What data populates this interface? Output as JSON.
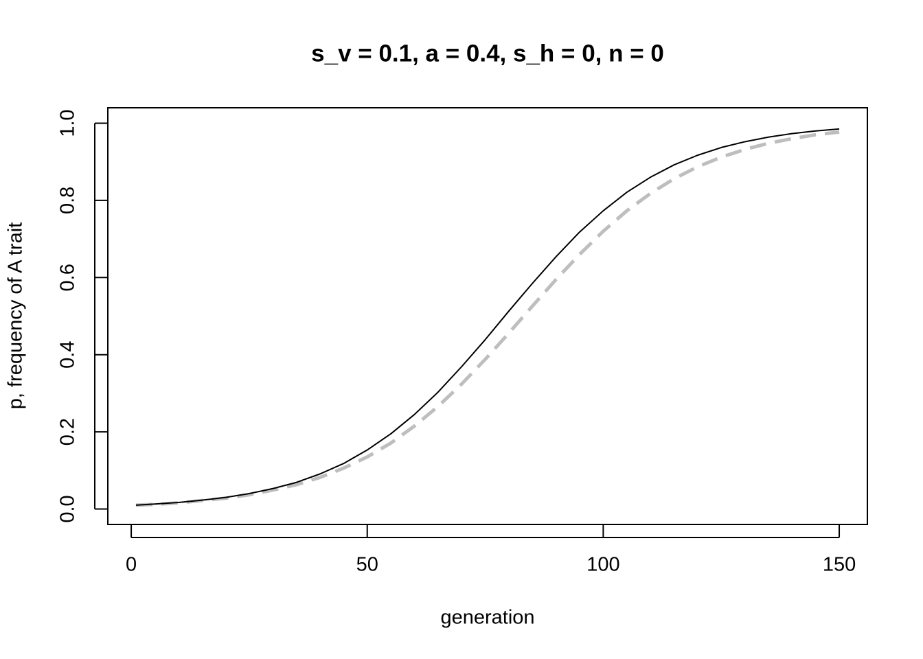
{
  "chart_data": {
    "type": "line",
    "title": "s_v = 0.1, a = 0.4, s_h = 0, n = 0",
    "xlabel": "generation",
    "ylabel": "p, frequency of A trait",
    "x": [
      1,
      5,
      10,
      15,
      20,
      25,
      30,
      35,
      40,
      45,
      50,
      55,
      60,
      65,
      70,
      75,
      80,
      85,
      90,
      95,
      100,
      105,
      110,
      115,
      120,
      125,
      130,
      135,
      140,
      145,
      150
    ],
    "series": [
      {
        "color": "#000000",
        "style": "solid",
        "values": [
          0.01,
          0.013,
          0.017,
          0.023,
          0.03,
          0.04,
          0.053,
          0.069,
          0.091,
          0.118,
          0.153,
          0.195,
          0.245,
          0.303,
          0.369,
          0.439,
          0.513,
          0.585,
          0.654,
          0.718,
          0.773,
          0.821,
          0.86,
          0.892,
          0.917,
          0.937,
          0.952,
          0.964,
          0.973,
          0.98,
          0.985
        ]
      },
      {
        "color": "#bebebe",
        "style": "dashed",
        "values": [
          0.01,
          0.012,
          0.016,
          0.022,
          0.028,
          0.037,
          0.049,
          0.063,
          0.082,
          0.106,
          0.135,
          0.171,
          0.215,
          0.266,
          0.324,
          0.388,
          0.456,
          0.526,
          0.595,
          0.66,
          0.72,
          0.773,
          0.818,
          0.856,
          0.887,
          0.912,
          0.932,
          0.948,
          0.96,
          0.97,
          0.977
        ]
      }
    ],
    "xlim": [
      -4.96,
      155.96
    ],
    "ylim": [
      -0.04,
      1.04
    ],
    "xticks": [
      0,
      50,
      100,
      150
    ],
    "yticks": [
      {
        "value": 0,
        "label": "0.0"
      },
      0.2,
      0.4,
      0.6,
      0.8,
      {
        "value": 1,
        "label": "1.0"
      }
    ],
    "grid": false
  }
}
